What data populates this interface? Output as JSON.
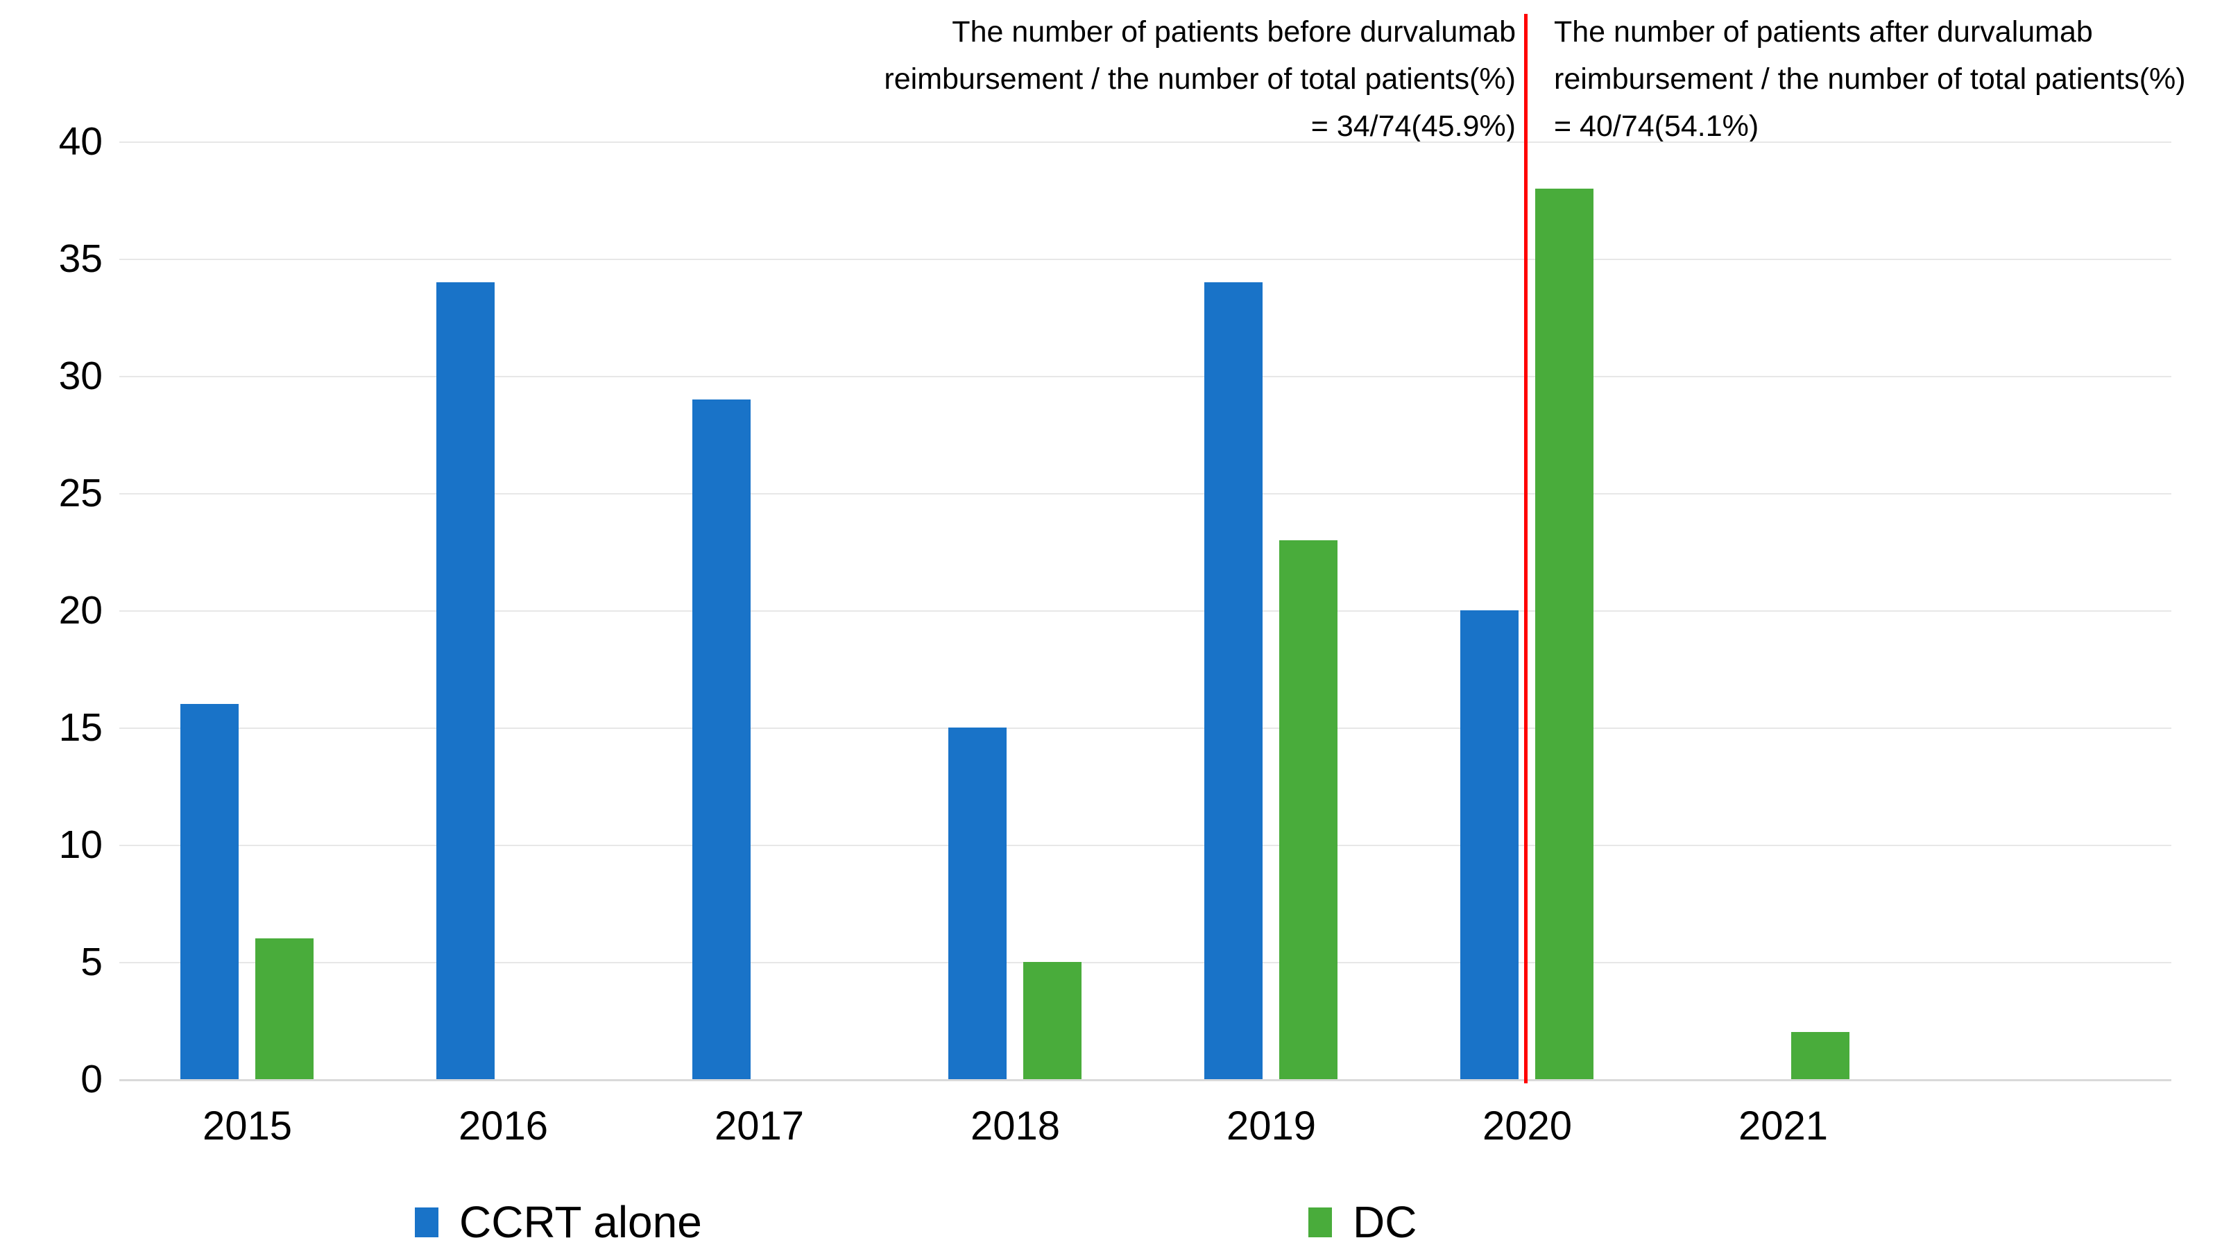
{
  "chart_data": {
    "type": "bar",
    "title": "",
    "xlabel": "",
    "ylabel": "",
    "categories": [
      "2015",
      "2016",
      "2017",
      "2018",
      "2019",
      "2020",
      "2021"
    ],
    "series": [
      {
        "name": "CCRT alone",
        "color": "#1973C8",
        "values": [
          16,
          34,
          29,
          15,
          34,
          20,
          null
        ]
      },
      {
        "name": "DC",
        "color": "#49AC3B",
        "values": [
          6,
          null,
          null,
          5,
          23,
          38,
          2
        ]
      }
    ],
    "ylim": [
      0,
      40
    ],
    "ytick_step": 5,
    "yticks": [
      "0",
      "5",
      "10",
      "15",
      "20",
      "25",
      "30",
      "35",
      "40"
    ],
    "grid": "horizontal",
    "legend_position": "bottom",
    "divider_line": {
      "color": "#FF0000",
      "position": "vertical line between the 2020 CCRT alone bar and the 2020 DC bar"
    },
    "annotations": [
      {
        "id": "before-reimbursement",
        "align": "right",
        "lines": [
          "The number of patients before durvalumab",
          "reimbursement / the number of total patients(%)",
          "= 34/74(45.9%)"
        ]
      },
      {
        "id": "after-reimbursement",
        "align": "left",
        "lines": [
          "The number of patients after durvalumab",
          "reimbursement / the number of total patients(%)",
          "= 40/74(54.1%)"
        ]
      }
    ]
  },
  "legend": {
    "items": [
      {
        "label": "CCRT alone",
        "color": "#1973C8"
      },
      {
        "label": "DC",
        "color": "#49AC3B"
      }
    ]
  },
  "colors": {
    "background": "#FFFFFF",
    "gridline": "#E7E7E7",
    "baseline": "#D9D9D9",
    "text": "#000000",
    "divider": "#FF0000"
  }
}
